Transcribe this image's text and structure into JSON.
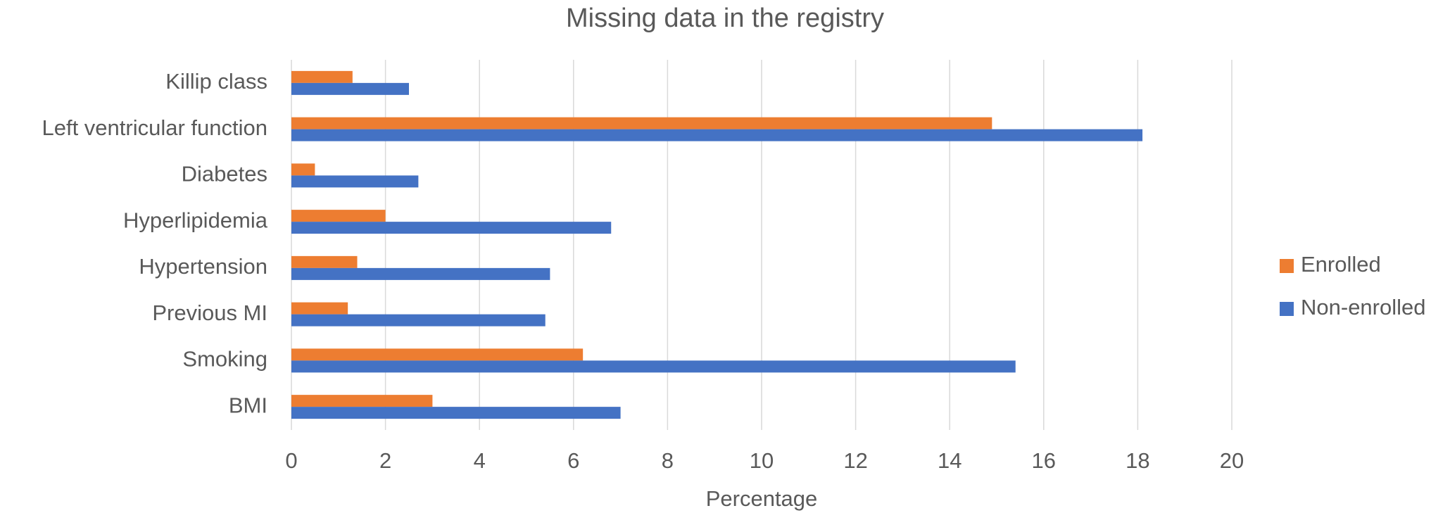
{
  "chart_data": {
    "type": "hbar",
    "title": "Missing data in the registry",
    "xlabel": "Percentage",
    "categories": [
      "Killip class",
      "Left ventricular function",
      "Diabetes",
      "Hyperlipidemia",
      "Hypertension",
      "Previous MI",
      "Smoking",
      "BMI"
    ],
    "series": [
      {
        "name": "Enrolled",
        "color": "#ED7D31",
        "values": [
          1.3,
          14.9,
          0.5,
          2.0,
          1.4,
          1.2,
          6.2,
          3.0
        ]
      },
      {
        "name": "Non-enrolled",
        "color": "#4472C4",
        "values": [
          2.5,
          18.1,
          2.7,
          6.8,
          5.5,
          5.4,
          15.4,
          7.0
        ]
      }
    ],
    "xlim": [
      0,
      20
    ],
    "xticks": [
      0,
      2,
      4,
      6,
      8,
      10,
      12,
      14,
      16,
      18,
      20
    ],
    "grid": true,
    "legend": "right"
  }
}
